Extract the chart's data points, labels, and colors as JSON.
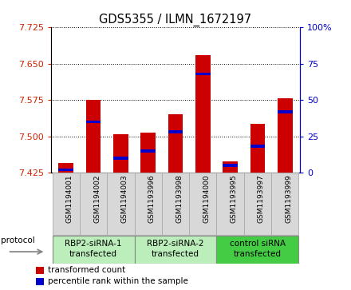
{
  "title": "GDS5355 / ILMN_1672197",
  "samples": [
    "GSM1194001",
    "GSM1194002",
    "GSM1194003",
    "GSM1193996",
    "GSM1193998",
    "GSM1194000",
    "GSM1193995",
    "GSM1193997",
    "GSM1193999"
  ],
  "red_values": [
    7.445,
    7.575,
    7.505,
    7.508,
    7.545,
    7.668,
    7.448,
    7.525,
    7.578
  ],
  "blue_values": [
    2,
    35,
    10,
    15,
    28,
    68,
    5,
    18,
    42
  ],
  "ylim_left": [
    7.425,
    7.725
  ],
  "ylim_right": [
    0,
    100
  ],
  "yticks_left": [
    7.425,
    7.5,
    7.575,
    7.65,
    7.725
  ],
  "yticks_right": [
    0,
    25,
    50,
    75,
    100
  ],
  "baseline": 7.425,
  "groups": [
    {
      "label": "RBP2-siRNA-1\ntransfected",
      "start": 0,
      "end": 3
    },
    {
      "label": "RBP2-siRNA-2\ntransfected",
      "start": 3,
      "end": 6
    },
    {
      "label": "control siRNA\ntransfected",
      "start": 6,
      "end": 9
    }
  ],
  "legend_labels": [
    "transformed count",
    "percentile rank within the sample"
  ],
  "legend_colors": [
    "#cc0000",
    "#0000cc"
  ],
  "bar_color": "#cc0000",
  "blue_color": "#0000cc",
  "bar_width": 0.55,
  "left_axis_color": "#cc2200",
  "right_axis_color": "#0000cc",
  "plot_bg": "#ffffff",
  "cell_color": "#d8d8d8",
  "group_colors_light": "#bbeebb",
  "group_colors_dark": "#44cc44"
}
